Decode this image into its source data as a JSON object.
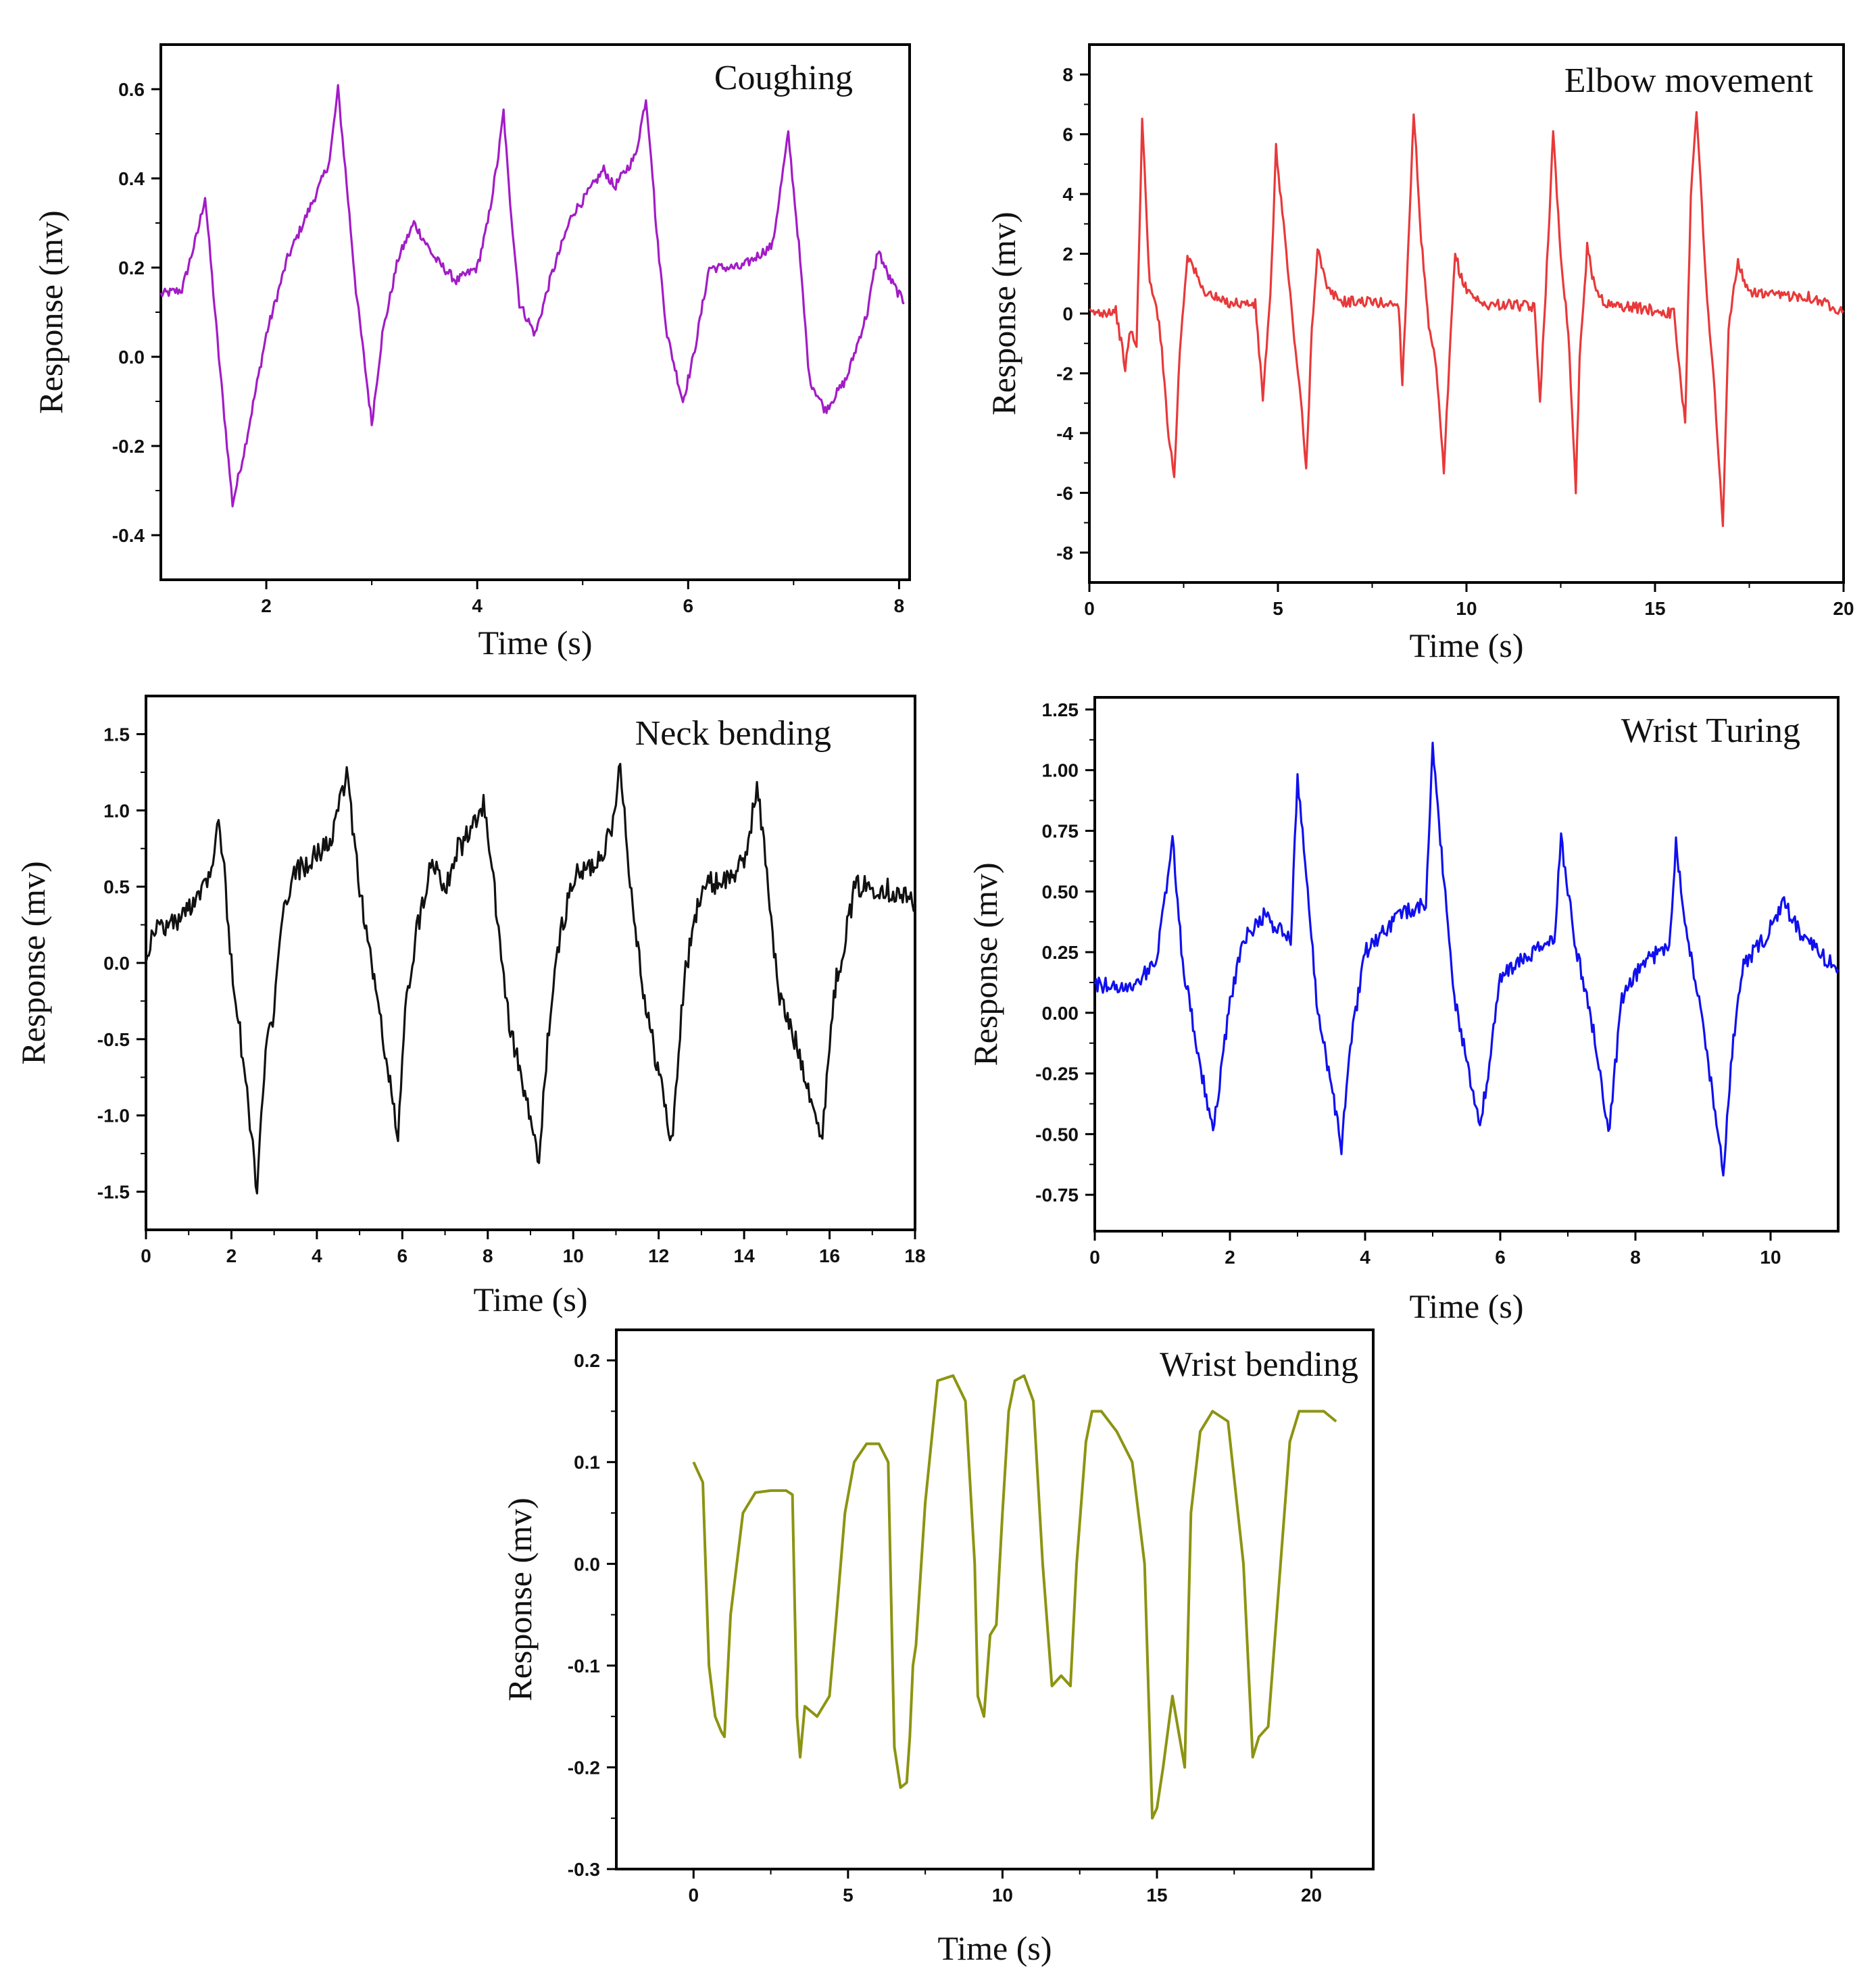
{
  "chart_data": [
    {
      "type": "line",
      "title": "Coughing",
      "xlabel": "Time (s)",
      "ylabel": "Response (mv)",
      "xlim": [
        1,
        8.1
      ],
      "ylim": [
        -0.5,
        0.7
      ],
      "xticks": [
        2,
        4,
        6,
        8
      ],
      "xtick_labels": [
        "2",
        "4",
        "6",
        "8"
      ],
      "yticks": [
        -0.4,
        -0.2,
        0.0,
        0.2,
        0.4,
        0.6
      ],
      "ytick_labels": [
        "-0.4",
        "-0.2",
        "0.0",
        "0.2",
        "0.4",
        "0.6"
      ],
      "color": "#a21cc6",
      "noise": 0.018,
      "series": [
        {
          "name": "Coughing",
          "x": [
            1.0,
            1.2,
            1.35,
            1.42,
            1.55,
            1.68,
            1.8,
            2.0,
            2.2,
            2.5,
            2.6,
            2.68,
            2.75,
            2.85,
            3.0,
            3.1,
            3.25,
            3.4,
            3.6,
            3.8,
            4.0,
            4.1,
            4.2,
            4.25,
            4.3,
            4.4,
            4.55,
            4.7,
            4.9,
            5.0,
            5.2,
            5.3,
            5.5,
            5.6,
            5.65,
            5.7,
            5.8,
            5.95,
            6.05,
            6.2,
            6.5,
            6.8,
            6.95,
            7.05,
            7.15,
            7.3,
            7.5,
            7.7,
            7.8,
            7.9,
            8.05
          ],
          "y": [
            0.14,
            0.15,
            0.28,
            0.36,
            0.0,
            -0.33,
            -0.2,
            0.05,
            0.22,
            0.38,
            0.44,
            0.6,
            0.42,
            0.15,
            -0.15,
            0.05,
            0.22,
            0.3,
            0.22,
            0.17,
            0.2,
            0.3,
            0.45,
            0.55,
            0.38,
            0.12,
            0.05,
            0.18,
            0.32,
            0.35,
            0.42,
            0.38,
            0.45,
            0.58,
            0.45,
            0.28,
            0.05,
            -0.1,
            0.0,
            0.2,
            0.2,
            0.25,
            0.5,
            0.25,
            -0.05,
            -0.12,
            -0.05,
            0.1,
            0.24,
            0.18,
            0.12
          ]
        }
      ]
    },
    {
      "type": "line",
      "title": "Elbow movement",
      "xlabel": "Time (s)",
      "ylabel": "Response (mv)",
      "xlim": [
        0,
        20
      ],
      "ylim": [
        -9,
        9
      ],
      "xticks": [
        0,
        5,
        10,
        15,
        20
      ],
      "xtick_labels": [
        "0",
        "5",
        "10",
        "15",
        "20"
      ],
      "yticks": [
        -8,
        -6,
        -4,
        -2,
        0,
        2,
        4,
        6,
        8
      ],
      "ytick_labels": [
        "-8",
        "-6",
        "-4",
        "-2",
        "0",
        "2",
        "4",
        "6",
        "8"
      ],
      "color": "#e8393a",
      "noise": 0.02,
      "series": [
        {
          "name": "Elbow movement",
          "x": [
            0.0,
            0.7,
            0.95,
            1.1,
            1.25,
            1.4,
            1.6,
            1.85,
            2.1,
            2.25,
            2.4,
            2.6,
            3.0,
            3.5,
            4.4,
            4.6,
            4.8,
            4.95,
            5.15,
            5.4,
            5.6,
            5.75,
            5.9,
            6.05,
            6.3,
            6.7,
            7.3,
            8.2,
            8.3,
            8.45,
            8.6,
            8.8,
            9.0,
            9.2,
            9.4,
            9.55,
            9.7,
            9.9,
            10.4,
            11.2,
            11.8,
            11.95,
            12.1,
            12.3,
            12.5,
            12.7,
            12.9,
            13.0,
            13.2,
            13.4,
            13.7,
            14.5,
            15.5,
            15.8,
            15.95,
            16.1,
            16.35,
            16.55,
            16.8,
            16.95,
            17.2,
            17.4,
            18.0,
            19.0,
            20.0
          ],
          "y": [
            0.0,
            0.1,
            -1.8,
            -0.5,
            -1.2,
            6.5,
            1.0,
            -0.2,
            -4.0,
            -5.5,
            -1.2,
            2.0,
            0.8,
            0.4,
            0.3,
            -2.8,
            0.5,
            5.5,
            3.0,
            -0.4,
            -2.8,
            -5.3,
            -0.5,
            2.2,
            0.8,
            0.4,
            0.4,
            0.3,
            -2.3,
            2.0,
            6.8,
            2.5,
            -0.5,
            -1.8,
            -5.4,
            -1.5,
            2.0,
            1.0,
            0.3,
            0.3,
            0.2,
            -2.9,
            0.8,
            6.0,
            2.0,
            -0.6,
            -5.9,
            -1.5,
            2.2,
            0.9,
            0.3,
            0.2,
            0.0,
            -3.7,
            4.0,
            6.9,
            1.0,
            -2.0,
            -7.2,
            -0.5,
            1.8,
            0.8,
            0.6,
            0.6,
            0.1
          ]
        }
      ]
    },
    {
      "type": "line",
      "title": "Neck bending",
      "xlabel": "Time (s)",
      "ylabel": "Response (mv)",
      "xlim": [
        0,
        18
      ],
      "ylim": [
        -1.75,
        1.75
      ],
      "xticks": [
        0,
        2,
        4,
        6,
        8,
        10,
        12,
        14,
        16,
        18
      ],
      "xtick_labels": [
        "0",
        "2",
        "4",
        "6",
        "8",
        "10",
        "12",
        "14",
        "16",
        "18"
      ],
      "yticks": [
        -1.5,
        -1.0,
        -0.5,
        0.0,
        0.5,
        1.0,
        1.5
      ],
      "ytick_labels": [
        "-1.5",
        "-1.0",
        "-0.5",
        "0.0",
        "0.5",
        "1.0",
        "1.5"
      ],
      "color": "#111111",
      "noise": 0.045,
      "series": [
        {
          "name": "Neck bending",
          "x": [
            0.0,
            0.2,
            0.8,
            1.2,
            1.5,
            1.7,
            1.8,
            2.0,
            2.3,
            2.6,
            2.8,
            3.0,
            3.2,
            3.5,
            4.0,
            4.4,
            4.7,
            5.0,
            5.5,
            5.9,
            6.1,
            6.4,
            6.7,
            7.0,
            7.3,
            7.6,
            7.9,
            8.1,
            8.5,
            8.9,
            9.2,
            9.4,
            9.7,
            10.0,
            10.5,
            10.9,
            11.1,
            11.3,
            11.7,
            12.1,
            12.3,
            12.6,
            13.0,
            13.6,
            14.0,
            14.3,
            14.5,
            14.8,
            15.3,
            15.6,
            15.8,
            16.1,
            16.6,
            17.2,
            18.0
          ],
          "y": [
            0.05,
            0.22,
            0.28,
            0.45,
            0.6,
            0.95,
            0.7,
            0.0,
            -0.7,
            -1.48,
            -0.6,
            -0.3,
            0.3,
            0.6,
            0.7,
            0.85,
            1.25,
            0.5,
            -0.4,
            -1.15,
            -0.2,
            0.3,
            0.7,
            0.5,
            0.75,
            0.85,
            1.05,
            0.6,
            -0.4,
            -0.9,
            -1.33,
            -0.5,
            0.2,
            0.55,
            0.65,
            0.85,
            1.35,
            0.6,
            -0.3,
            -0.85,
            -1.2,
            -0.1,
            0.5,
            0.55,
            0.65,
            1.15,
            0.7,
            -0.2,
            -0.6,
            -0.9,
            -1.2,
            -0.2,
            0.5,
            0.5,
            0.4
          ]
        }
      ]
    },
    {
      "type": "line",
      "title": "Wrist Turing",
      "xlabel": "Time (s)",
      "ylabel": "Response (mv)",
      "xlim": [
        0,
        11
      ],
      "ylim": [
        -0.9,
        1.3
      ],
      "xticks": [
        0,
        2,
        4,
        6,
        8,
        10
      ],
      "xtick_labels": [
        "0",
        "2",
        "4",
        "6",
        "8",
        "10"
      ],
      "yticks": [
        -0.75,
        -0.5,
        -0.25,
        0.0,
        0.25,
        0.5,
        0.75,
        1.0,
        1.25
      ],
      "ytick_labels": [
        "-0.75",
        "-0.50",
        "-0.25",
        "0.00",
        "0.25",
        "0.50",
        "0.75",
        "1.00",
        "1.25"
      ],
      "color": "#1010ee",
      "noise": 0.03,
      "series": [
        {
          "name": "Wrist Turing",
          "x": [
            0.0,
            0.5,
            0.9,
            1.1,
            1.15,
            1.3,
            1.55,
            1.75,
            2.0,
            2.2,
            2.5,
            2.9,
            3.0,
            3.15,
            3.3,
            3.5,
            3.65,
            3.8,
            4.0,
            4.5,
            4.9,
            5.0,
            5.15,
            5.3,
            5.5,
            5.7,
            5.8,
            6.0,
            6.5,
            6.8,
            6.9,
            7.1,
            7.4,
            7.6,
            7.8,
            8.1,
            8.5,
            8.6,
            8.75,
            9.0,
            9.3,
            9.45,
            9.6,
            9.9,
            10.2,
            10.5,
            11.0
          ],
          "y": [
            0.12,
            0.1,
            0.2,
            0.6,
            0.73,
            0.2,
            -0.2,
            -0.5,
            0.05,
            0.3,
            0.4,
            0.3,
            0.98,
            0.5,
            0.0,
            -0.3,
            -0.55,
            -0.1,
            0.25,
            0.4,
            0.45,
            1.1,
            0.6,
            0.1,
            -0.2,
            -0.45,
            -0.3,
            0.15,
            0.25,
            0.3,
            0.72,
            0.3,
            -0.1,
            -0.5,
            0.05,
            0.2,
            0.28,
            0.7,
            0.35,
            -0.05,
            -0.65,
            -0.1,
            0.2,
            0.3,
            0.45,
            0.3,
            0.18
          ]
        }
      ]
    },
    {
      "type": "line",
      "title": "Wrist bending",
      "xlabel": "Time (s)",
      "ylabel": "Response (mv)",
      "xlim": [
        -2.5,
        22
      ],
      "ylim": [
        -0.3,
        0.23
      ],
      "xticks": [
        0,
        5,
        10,
        15,
        20
      ],
      "xtick_labels": [
        "0",
        "5",
        "10",
        "15",
        "20"
      ],
      "yticks": [
        -0.3,
        -0.2,
        -0.1,
        0.0,
        0.1,
        0.2
      ],
      "ytick_labels": [
        "-0.3",
        "-0.2",
        "-0.1",
        "0.0",
        "0.1",
        "0.2"
      ],
      "color": "#8c9411",
      "noise": 0.0,
      "series": [
        {
          "name": "Wrist bending",
          "x": [
            0.0,
            0.3,
            0.5,
            0.7,
            0.9,
            1.0,
            1.2,
            1.6,
            2.0,
            2.5,
            3.0,
            3.2,
            3.35,
            3.45,
            3.6,
            4.0,
            4.4,
            4.6,
            4.9,
            5.2,
            5.6,
            6.0,
            6.3,
            6.5,
            6.7,
            6.9,
            7.0,
            7.1,
            7.2,
            7.5,
            7.9,
            8.4,
            8.8,
            9.1,
            9.2,
            9.4,
            9.6,
            9.8,
            10.0,
            10.2,
            10.4,
            10.7,
            11.0,
            11.3,
            11.6,
            11.9,
            12.2,
            12.4,
            12.7,
            12.9,
            13.2,
            13.7,
            14.2,
            14.6,
            14.85,
            15.0,
            15.2,
            15.5,
            15.9,
            16.1,
            16.4,
            16.8,
            17.3,
            17.8,
            18.1,
            18.3,
            18.6,
            19.0,
            19.3,
            19.6,
            20.0,
            20.4,
            20.8
          ],
          "y": [
            0.1,
            0.08,
            -0.1,
            -0.15,
            -0.165,
            -0.17,
            -0.05,
            0.05,
            0.07,
            0.072,
            0.072,
            0.068,
            -0.15,
            -0.19,
            -0.14,
            -0.15,
            -0.13,
            -0.06,
            0.05,
            0.1,
            0.118,
            0.118,
            0.1,
            -0.18,
            -0.22,
            -0.215,
            -0.17,
            -0.1,
            -0.08,
            0.06,
            0.18,
            0.185,
            0.16,
            0.0,
            -0.13,
            -0.15,
            -0.07,
            -0.06,
            0.05,
            0.15,
            0.18,
            0.185,
            0.16,
            0.0,
            -0.12,
            -0.11,
            -0.12,
            0.0,
            0.12,
            0.15,
            0.15,
            0.13,
            0.1,
            0.0,
            -0.25,
            -0.24,
            -0.2,
            -0.13,
            -0.2,
            0.05,
            0.13,
            0.15,
            0.14,
            0.0,
            -0.19,
            -0.17,
            -0.16,
            0.0,
            0.12,
            0.15,
            0.15,
            0.15,
            0.14
          ]
        }
      ]
    }
  ]
}
